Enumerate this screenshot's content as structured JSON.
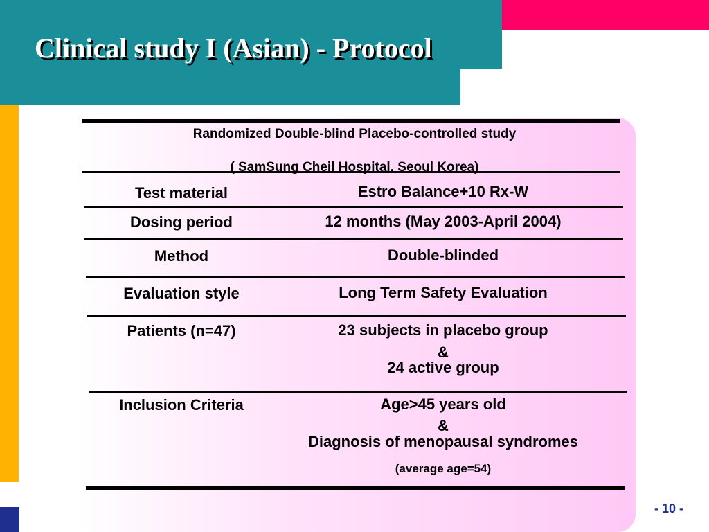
{
  "slide": {
    "title": "Clinical study I (Asian) - Protocol",
    "page_number": "- 10 -",
    "colors": {
      "teal": "#1a8f99",
      "pink": "#ff0066",
      "yellow": "#ffb300",
      "navy": "#1f2f8f",
      "panel_pink": "#ffc8f6"
    }
  },
  "study": {
    "header_line1": "Randomized Double-blind Placebo-controlled study",
    "header_line2": "( SamSung Cheil Hospital, Seoul Korea)",
    "rows": [
      {
        "label": "Test material",
        "value": "Estro Balance+10 Rx-W"
      },
      {
        "label": "Dosing period",
        "value": "12 months (May 2003-April 2004)"
      },
      {
        "label": "Method",
        "value": "Double-blinded"
      },
      {
        "label": "Evaluation style",
        "value": "Long Term Safety Evaluation"
      },
      {
        "label": "Patients (n=47)",
        "value_lines": [
          "23 subjects in placebo group",
          "&",
          "24 active group"
        ]
      },
      {
        "label": "Inclusion Criteria",
        "value_lines": [
          "Age>45 years old",
          "&",
          "Diagnosis of menopausal syndromes"
        ],
        "note": "(average age=54)"
      }
    ]
  }
}
